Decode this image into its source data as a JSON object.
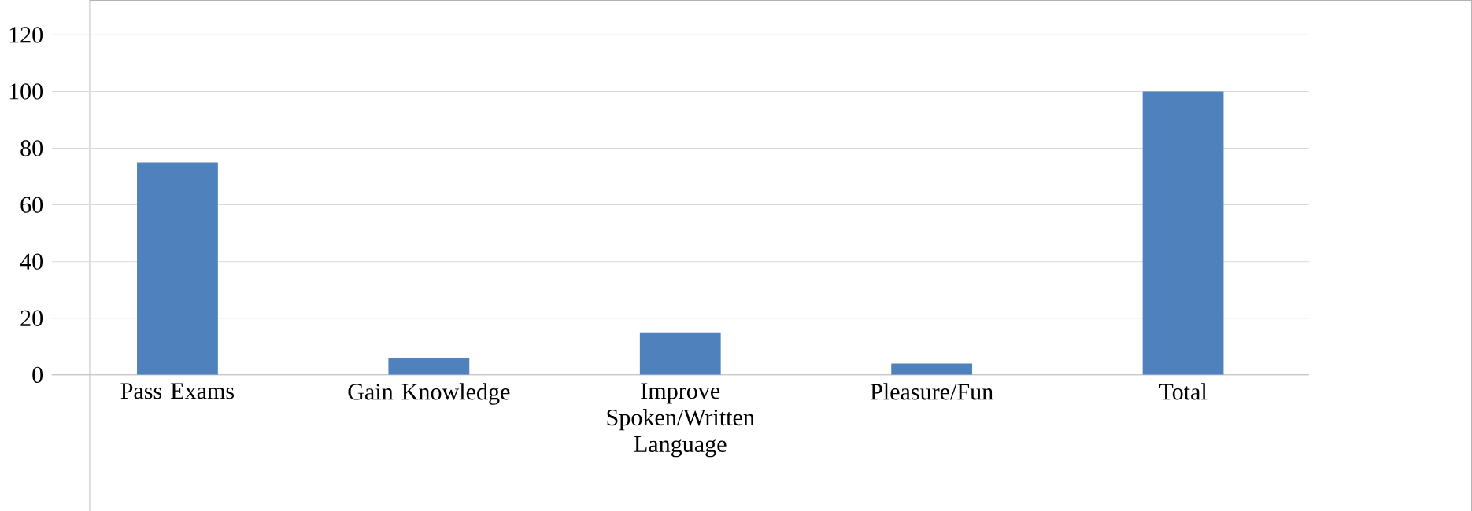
{
  "chart_data": {
    "type": "bar",
    "categories": [
      "Pass Exams",
      "Gain Knowledge",
      "Improve Spoken/Written Language",
      "Pleasure/Fun",
      "Total"
    ],
    "values": [
      75,
      6,
      15,
      4,
      100
    ],
    "color": "#4f81bd",
    "ylim": [
      0,
      120
    ],
    "yticks": [
      0,
      20,
      40,
      60,
      80,
      100,
      120
    ],
    "grid": "y"
  }
}
